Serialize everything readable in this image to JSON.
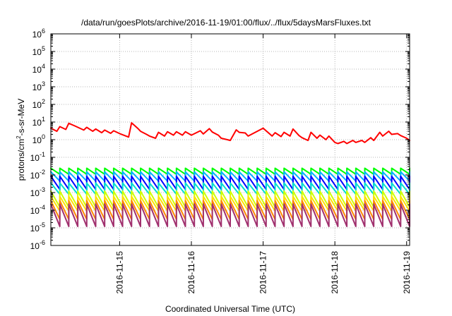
{
  "chart_data": {
    "type": "line",
    "title": "/data/run/goesPlots/archive/2016-11-19/01:00/flux/../flux/5daysMarsFluxes.txt",
    "xlabel": "Coordinated Universal Time (UTC)",
    "ylabel": "protons/cm2-s-sr-MeV",
    "ylabel_parts": {
      "base": "protons/cm",
      "sup": "2",
      "rest": "-s-sr-MeV"
    },
    "yscale": "log",
    "ylim": [
      1e-06,
      1000000.0
    ],
    "xlim": [
      "2016-11-14T01:00",
      "2016-11-19T01:00"
    ],
    "grid": true,
    "legend": "none",
    "xticks": [
      {
        "label": "2016-11-15",
        "value": "2016-11-15T00:00"
      },
      {
        "label": "2016-11-16",
        "value": "2016-11-16T00:00"
      },
      {
        "label": "2016-11-17",
        "value": "2016-11-17T00:00"
      },
      {
        "label": "2016-11-18",
        "value": "2016-11-18T00:00"
      },
      {
        "label": "2016-11-19",
        "value": "2016-11-19T00:00"
      }
    ],
    "yticks": [
      {
        "base": "10",
        "exp": "6",
        "value": 1000000.0
      },
      {
        "base": "10",
        "exp": "5",
        "value": 100000.0
      },
      {
        "base": "10",
        "exp": "4",
        "value": 10000.0
      },
      {
        "base": "10",
        "exp": "3",
        "value": 1000.0
      },
      {
        "base": "10",
        "exp": "2",
        "value": 100.0
      },
      {
        "base": "10",
        "exp": "1",
        "value": 10.0
      },
      {
        "base": "10",
        "exp": "0",
        "value": 1.0
      },
      {
        "base": "10",
        "exp": "-1",
        "value": 0.1
      },
      {
        "base": "10",
        "exp": "-2",
        "value": 0.01
      },
      {
        "base": "10",
        "exp": "-3",
        "value": 0.001
      },
      {
        "base": "10",
        "exp": "-4",
        "value": 0.0001
      },
      {
        "base": "10",
        "exp": "-5",
        "value": 1e-05
      },
      {
        "base": "10",
        "exp": "-6",
        "value": 1e-06
      }
    ],
    "series": [
      {
        "color": "#ff0000",
        "x": [
          "2016-11-14T01:00",
          "2016-11-14T03:00",
          "2016-11-14T04:00",
          "2016-11-14T06:00",
          "2016-11-14T07:00",
          "2016-11-14T09:00",
          "2016-11-14T12:00",
          "2016-11-14T13:00",
          "2016-11-14T15:00",
          "2016-11-14T16:00",
          "2016-11-14T18:00",
          "2016-11-14T19:00",
          "2016-11-14T21:00",
          "2016-11-14T22:00",
          "2016-11-15T00:00",
          "2016-11-15T03:00",
          "2016-11-15T04:00",
          "2016-11-15T06:00",
          "2016-11-15T07:00",
          "2016-11-15T09:00",
          "2016-11-15T10:00",
          "2016-11-15T12:00",
          "2016-11-15T13:00",
          "2016-11-15T15:00",
          "2016-11-15T16:00",
          "2016-11-15T18:00",
          "2016-11-15T19:00",
          "2016-11-15T21:00",
          "2016-11-15T22:00",
          "2016-11-16T00:00",
          "2016-11-16T03:00",
          "2016-11-16T04:00",
          "2016-11-16T06:00",
          "2016-11-16T07:00",
          "2016-11-16T09:00",
          "2016-11-16T10:00",
          "2016-11-16T12:00",
          "2016-11-16T13:00",
          "2016-11-16T15:00",
          "2016-11-16T16:00",
          "2016-11-16T18:00",
          "2016-11-16T19:00",
          "2016-11-17T00:00",
          "2016-11-17T03:00",
          "2016-11-17T04:00",
          "2016-11-17T06:00",
          "2016-11-17T07:00",
          "2016-11-17T09:00",
          "2016-11-17T10:00",
          "2016-11-17T12:00",
          "2016-11-17T13:00",
          "2016-11-17T15:00",
          "2016-11-17T16:00",
          "2016-11-17T18:00",
          "2016-11-17T19:00",
          "2016-11-17T21:00",
          "2016-11-17T22:00",
          "2016-11-18T00:00",
          "2016-11-18T01:00",
          "2016-11-18T03:00",
          "2016-11-18T04:00",
          "2016-11-18T06:00",
          "2016-11-18T07:00",
          "2016-11-18T09:00",
          "2016-11-18T10:00",
          "2016-11-18T12:00",
          "2016-11-18T13:00",
          "2016-11-18T15:00",
          "2016-11-18T16:00",
          "2016-11-18T18:00",
          "2016-11-18T19:00",
          "2016-11-18T21:00",
          "2016-11-18T22:00",
          "2016-11-19T00:00",
          "2016-11-19T01:00"
        ],
        "y": [
          4.5,
          3.0,
          5.5,
          3.8,
          8.5,
          6.0,
          3.5,
          5.0,
          3.0,
          4.0,
          2.5,
          3.5,
          2.3,
          3.2,
          2.2,
          1.4,
          9.0,
          4.5,
          3.0,
          2.0,
          1.6,
          1.2,
          2.6,
          1.6,
          2.8,
          1.8,
          2.8,
          1.8,
          2.8,
          1.8,
          3.2,
          2.1,
          4.2,
          2.7,
          1.8,
          1.2,
          1.0,
          0.9,
          3.6,
          2.6,
          2.4,
          1.6,
          4.5,
          1.6,
          2.5,
          1.5,
          2.6,
          1.6,
          4.0,
          1.7,
          1.3,
          0.9,
          2.6,
          1.2,
          1.8,
          1.0,
          1.6,
          0.7,
          0.6,
          0.8,
          0.6,
          0.9,
          0.7,
          0.9,
          0.7,
          1.3,
          0.9,
          2.6,
          1.6,
          3.0,
          2.0,
          2.2,
          1.7,
          1.2,
          0.9
        ]
      },
      {
        "color": "#00ff00",
        "period_hours": 3,
        "peak": 0.024,
        "trough": 0.011
      },
      {
        "color": "#00b3ff",
        "period_hours": 3,
        "peak": 0.015,
        "trough": 0.0045
      },
      {
        "color": "#0000ff",
        "period_hours": 3,
        "peak": 0.0085,
        "trough": 0.0015
      },
      {
        "color": "#00e0d0",
        "period_hours": 3,
        "peak": 0.0035,
        "trough": 0.0008
      },
      {
        "color": "#d0ff00",
        "period_hours": 3,
        "peak": 0.0012,
        "trough": 0.00015
      },
      {
        "color": "#ffe000",
        "period_hours": 3,
        "peak": 0.0006,
        "trough": 9e-05
      },
      {
        "color": "#ff8800",
        "period_hours": 3,
        "peak": 0.00035,
        "trough": 3e-05
      },
      {
        "color": "#a0306e",
        "period_hours": 3,
        "peak": 0.00022,
        "trough": 1.2e-05
      }
    ]
  }
}
